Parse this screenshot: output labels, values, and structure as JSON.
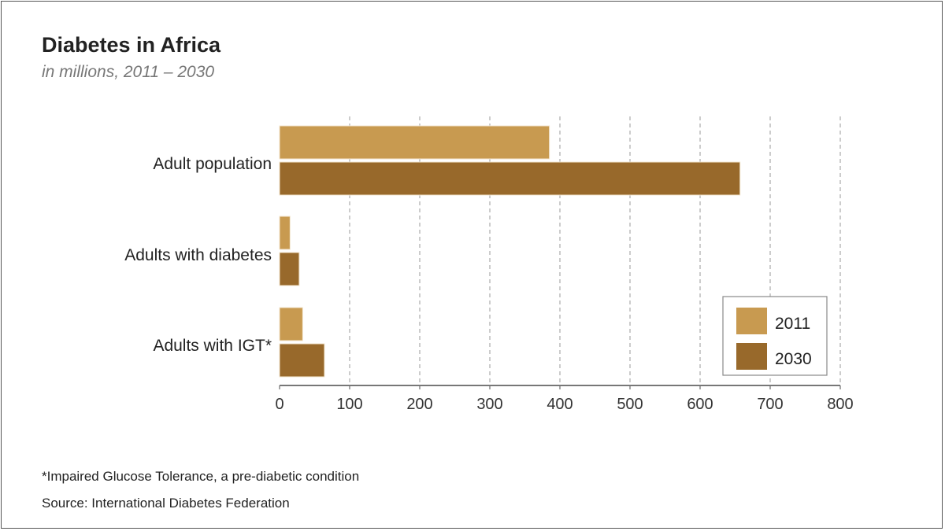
{
  "chart_data": {
    "type": "bar",
    "orientation": "horizontal",
    "title": "Diabetes in Africa",
    "subtitle": "in millions, 2011 – 2030",
    "categories": [
      "Adult population",
      "Adults with diabetes",
      "Adults with IGT*"
    ],
    "series": [
      {
        "name": "2011",
        "color": "#c89a50",
        "values": [
          385,
          15,
          33
        ]
      },
      {
        "name": "2030",
        "color": "#98692b",
        "values": [
          657,
          28,
          64
        ]
      }
    ],
    "xlim": [
      0,
      800
    ],
    "xticks": [
      0,
      100,
      200,
      300,
      400,
      500,
      600,
      700,
      800
    ],
    "grid": true,
    "legend_position": "bottom-right",
    "xlabel": "",
    "ylabel": ""
  },
  "footnote": "*Impaired Glucose Tolerance, a pre-diabetic condition",
  "source": "Source: International Diabetes Federation"
}
